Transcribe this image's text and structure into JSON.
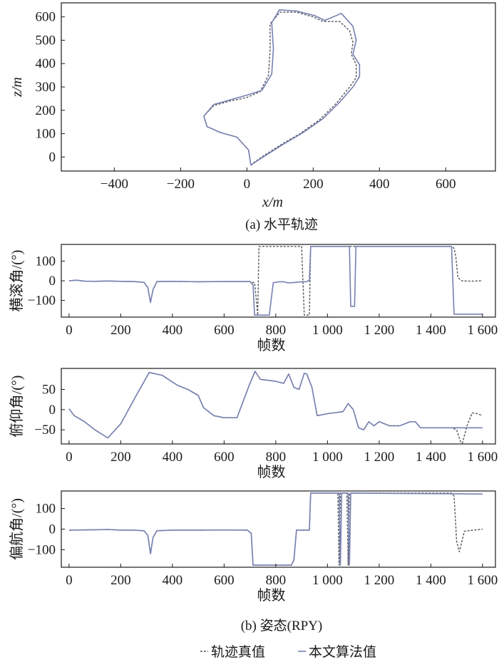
{
  "colors": {
    "truth": "#55555f",
    "estimate": "#7680b0",
    "axis": "#1a1a1a"
  },
  "captions": {
    "a": "(a) 水平轨迹",
    "b": "(b) 姿态(RPY)"
  },
  "legend": {
    "truth_label": "轨迹真值",
    "estimate_label": "本文算法值"
  },
  "chart_data": [
    {
      "id": "trajectory",
      "type": "line",
      "title": "(a) 水平轨迹",
      "xlabel": "x/m",
      "ylabel": "z/m",
      "xlim": [
        -560,
        750
      ],
      "ylim": [
        -60,
        660
      ],
      "xticks": [
        -400,
        -200,
        0,
        200,
        400,
        600
      ],
      "yticks": [
        0,
        100,
        200,
        300,
        400,
        500,
        600
      ],
      "series": [
        {
          "name": "轨迹真值",
          "style": "dashed",
          "x": [
            12,
            20,
            50,
            100,
            160,
            220,
            270,
            310,
            330,
            330,
            315,
            320,
            310,
            280,
            230,
            200,
            150,
            100,
            70,
            70,
            65,
            40,
            0,
            -50,
            -100,
            -130,
            -120,
            -80,
            -30,
            5,
            12
          ],
          "y": [
            -35,
            -25,
            5,
            50,
            100,
            160,
            230,
            300,
            340,
            395,
            440,
            490,
            540,
            580,
            580,
            600,
            620,
            620,
            570,
            460,
            350,
            280,
            255,
            240,
            220,
            175,
            130,
            105,
            85,
            30,
            -35
          ]
        },
        {
          "name": "本文算法值",
          "style": "solid",
          "x": [
            12,
            25,
            60,
            110,
            170,
            230,
            280,
            320,
            340,
            340,
            320,
            330,
            320,
            285,
            235,
            205,
            150,
            98,
            75,
            80,
            75,
            45,
            0,
            -50,
            -100,
            -130,
            -120,
            -80,
            -30,
            5,
            12
          ],
          "y": [
            -35,
            -22,
            10,
            55,
            105,
            165,
            235,
            300,
            345,
            395,
            440,
            500,
            560,
            615,
            585,
            605,
            625,
            630,
            575,
            465,
            355,
            285,
            265,
            245,
            225,
            175,
            130,
            105,
            85,
            30,
            -35
          ]
        }
      ]
    },
    {
      "id": "roll",
      "type": "line",
      "xlabel": "帧数",
      "ylabel": "横滚角/(°)",
      "xlim": [
        -30,
        1650
      ],
      "ylim": [
        -185,
        185
      ],
      "xticks": [
        0,
        200,
        400,
        600,
        800,
        1000,
        1200,
        1400,
        1600
      ],
      "xtick_labels": [
        "0",
        "200",
        "400",
        "600",
        "800",
        "1 000",
        "1 200",
        "1 400",
        "1 600"
      ],
      "yticks": [
        -100,
        0,
        100
      ],
      "series": [
        {
          "name": "轨迹真值",
          "style": "dashed",
          "x": [
            0,
            30,
            60,
            100,
            150,
            200,
            250,
            290,
            305,
            315,
            325,
            340,
            400,
            500,
            600,
            700,
            718,
            725,
            730,
            735,
            900,
            910,
            915,
            925,
            930,
            935,
            945,
            1240,
            1290,
            1480,
            1490,
            1497,
            1505,
            1520,
            1550,
            1600
          ],
          "y": [
            0,
            3,
            -2,
            -3,
            -1,
            -3,
            -4,
            -8,
            -35,
            -110,
            -45,
            -4,
            -3,
            -5,
            -4,
            -4,
            -10,
            -100,
            -175,
            175,
            175,
            -175,
            -175,
            -175,
            -175,
            175,
            175,
            175,
            175,
            175,
            165,
            120,
            15,
            0,
            -2,
            0
          ]
        },
        {
          "name": "本文算法值",
          "style": "solid",
          "x": [
            0,
            30,
            60,
            100,
            150,
            200,
            250,
            290,
            305,
            315,
            325,
            340,
            400,
            500,
            600,
            700,
            712,
            718,
            722,
            760,
            775,
            790,
            810,
            830,
            845,
            860,
            900,
            918,
            925,
            930,
            935,
            940,
            945,
            1085,
            1090,
            1105,
            1110,
            1120,
            1140,
            1155,
            1200,
            1230,
            1260,
            1290,
            1310,
            1340,
            1370,
            1390,
            1420,
            1440,
            1450,
            1460,
            1470,
            1480,
            1490,
            1500,
            1600
          ],
          "y": [
            0,
            3,
            -2,
            -3,
            -1,
            -3,
            -4,
            -8,
            -35,
            -110,
            -45,
            -4,
            -3,
            -5,
            -4,
            -4,
            -20,
            -175,
            -175,
            -175,
            -175,
            -10,
            -5,
            -5,
            -10,
            -10,
            -5,
            -5,
            0,
            0,
            175,
            175,
            175,
            175,
            -130,
            -130,
            175,
            175,
            175,
            175,
            175,
            175,
            175,
            175,
            175,
            175,
            175,
            175,
            175,
            175,
            175,
            175,
            175,
            175,
            -170,
            -170,
            -170
          ]
        }
      ]
    },
    {
      "id": "pitch",
      "type": "line",
      "xlabel": "帧数",
      "ylabel": "俯仰角/(°)",
      "xlim": [
        -30,
        1650
      ],
      "ylim": [
        -85,
        102
      ],
      "xticks": [
        0,
        200,
        400,
        600,
        800,
        1000,
        1200,
        1400,
        1600
      ],
      "xtick_labels": [
        "0",
        "200",
        "400",
        "600",
        "800",
        "1 000",
        "1 200",
        "1 400",
        "1 600"
      ],
      "yticks": [
        -50,
        0,
        50
      ],
      "series": [
        {
          "name": "轨迹真值",
          "style": "dashed",
          "x": [
            0,
            20,
            60,
            100,
            150,
            200,
            260,
            310,
            360,
            420,
            460,
            500,
            520,
            560,
            600,
            650,
            700,
            720,
            740,
            800,
            830,
            850,
            870,
            890,
            910,
            920,
            940,
            960,
            1000,
            1060,
            1080,
            1100,
            1120,
            1140,
            1160,
            1180,
            1200,
            1240,
            1280,
            1320,
            1340,
            1360,
            1400,
            1440,
            1480,
            1500,
            1510,
            1520,
            1540,
            1560,
            1580,
            1600
          ],
          "y": [
            2,
            -15,
            -30,
            -50,
            -70,
            -35,
            35,
            92,
            85,
            60,
            50,
            35,
            5,
            -15,
            -20,
            -20,
            65,
            95,
            75,
            70,
            65,
            88,
            55,
            50,
            90,
            88,
            55,
            -15,
            -10,
            -5,
            15,
            0,
            -45,
            -50,
            -30,
            -40,
            -30,
            -40,
            -40,
            -30,
            -30,
            -45,
            -45,
            -45,
            -45,
            -50,
            -70,
            -88,
            -40,
            -8,
            -10,
            -15
          ]
        },
        {
          "name": "本文算法值",
          "style": "solid",
          "x": [
            0,
            20,
            60,
            100,
            150,
            200,
            260,
            310,
            360,
            420,
            460,
            500,
            520,
            560,
            600,
            650,
            700,
            720,
            740,
            800,
            830,
            850,
            870,
            890,
            910,
            920,
            940,
            960,
            1000,
            1060,
            1080,
            1100,
            1120,
            1140,
            1160,
            1180,
            1200,
            1240,
            1280,
            1320,
            1340,
            1360,
            1400,
            1440,
            1480,
            1600
          ],
          "y": [
            2,
            -15,
            -30,
            -50,
            -70,
            -35,
            35,
            92,
            85,
            60,
            50,
            35,
            5,
            -15,
            -20,
            -20,
            65,
            95,
            75,
            70,
            65,
            88,
            55,
            50,
            90,
            88,
            55,
            -15,
            -10,
            -5,
            15,
            0,
            -45,
            -50,
            -30,
            -40,
            -30,
            -40,
            -40,
            -30,
            -30,
            -45,
            -45,
            -45,
            -45,
            -45
          ]
        }
      ]
    },
    {
      "id": "yaw",
      "type": "line",
      "xlabel": "帧数",
      "ylabel": "偏航角/(°)",
      "xlim": [
        -30,
        1650
      ],
      "ylim": [
        -185,
        185
      ],
      "xticks": [
        0,
        200,
        400,
        600,
        800,
        1000,
        1200,
        1400,
        1600
      ],
      "xtick_labels": [
        "0",
        "200",
        "400",
        "600",
        "800",
        "1 000",
        "1 200",
        "1 400",
        "1 600"
      ],
      "yticks": [
        -100,
        0,
        100
      ],
      "series": [
        {
          "name": "轨迹真值",
          "style": "dashed",
          "x": [
            0,
            50,
            100,
            150,
            200,
            250,
            290,
            305,
            315,
            325,
            340,
            400,
            500,
            600,
            690,
            705,
            712,
            760,
            800,
            840,
            860,
            870,
            880,
            920,
            930,
            935,
            1040,
            1045,
            1050,
            1055,
            1075,
            1080,
            1085,
            1480,
            1490,
            1500,
            1510,
            1530,
            1600
          ],
          "y": [
            -5,
            -4,
            -3,
            -2,
            -5,
            -5,
            -8,
            -30,
            -120,
            -40,
            -8,
            -5,
            -5,
            -4,
            -5,
            -20,
            -175,
            -175,
            -175,
            -175,
            -175,
            -150,
            -5,
            -5,
            -5,
            175,
            175,
            -175,
            175,
            175,
            175,
            -175,
            175,
            175,
            160,
            -60,
            -110,
            -10,
            0
          ]
        },
        {
          "name": "本文算法值",
          "style": "solid",
          "x": [
            0,
            50,
            100,
            150,
            200,
            250,
            290,
            305,
            315,
            325,
            340,
            400,
            500,
            600,
            690,
            705,
            712,
            760,
            800,
            840,
            860,
            870,
            880,
            920,
            930,
            935,
            1045,
            1050,
            1055,
            1060,
            1080,
            1085,
            1090,
            1600
          ],
          "y": [
            -5,
            -4,
            -3,
            -2,
            -5,
            -5,
            -8,
            -30,
            -120,
            -40,
            -8,
            -5,
            -5,
            -4,
            -5,
            -20,
            -175,
            -175,
            -175,
            -175,
            -175,
            -150,
            -5,
            -5,
            -5,
            175,
            175,
            -175,
            175,
            175,
            175,
            -175,
            175,
            170
          ]
        }
      ]
    }
  ]
}
